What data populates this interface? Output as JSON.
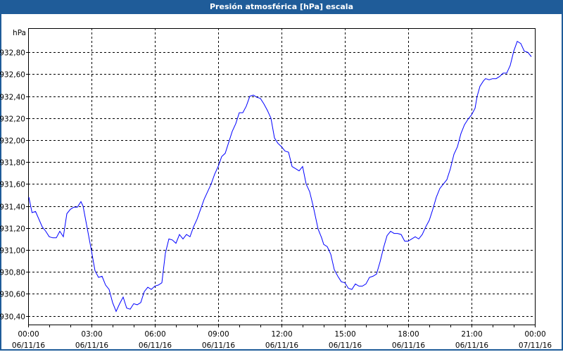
{
  "window": {
    "title": "Presión atmosférica [hPa] escala"
  },
  "chart_data": {
    "type": "line",
    "title": "Presión atmosférica [hPa] escala",
    "ylabel": "hPa",
    "xlabel": "",
    "x_unit": "minutes since 06/11/16 00:00",
    "xlim": [
      0,
      1440
    ],
    "ylim": [
      930.32,
      933.02
    ],
    "grid": true,
    "line_color": "#0000ff",
    "yticks": [
      {
        "value": 930.4,
        "label": "930,40"
      },
      {
        "value": 930.6,
        "label": "930,60"
      },
      {
        "value": 930.8,
        "label": "930,80"
      },
      {
        "value": 931.0,
        "label": "931,00"
      },
      {
        "value": 931.2,
        "label": "931,20"
      },
      {
        "value": 931.4,
        "label": "931,40"
      },
      {
        "value": 931.6,
        "label": "931,60"
      },
      {
        "value": 931.8,
        "label": "931,80"
      },
      {
        "value": 932.0,
        "label": "932,00"
      },
      {
        "value": 932.2,
        "label": "932,20"
      },
      {
        "value": 932.4,
        "label": "932,40"
      },
      {
        "value": 932.6,
        "label": "932,60"
      },
      {
        "value": 932.8,
        "label": "932,80"
      }
    ],
    "xticks": [
      {
        "value": 0,
        "time": "00:00",
        "date": "06/11/16"
      },
      {
        "value": 180,
        "time": "03:00",
        "date": "06/11/16"
      },
      {
        "value": 360,
        "time": "06:00",
        "date": "06/11/16"
      },
      {
        "value": 540,
        "time": "09:00",
        "date": "06/11/16"
      },
      {
        "value": 720,
        "time": "12:00",
        "date": "06/11/16"
      },
      {
        "value": 900,
        "time": "15:00",
        "date": "06/11/16"
      },
      {
        "value": 1080,
        "time": "18:00",
        "date": "06/11/16"
      },
      {
        "value": 1260,
        "time": "21:00",
        "date": "06/11/16"
      },
      {
        "value": 1440,
        "time": "00:00",
        "date": "07/11/16"
      }
    ],
    "series": [
      {
        "name": "Presión atmosférica",
        "x": [
          2,
          11,
          21,
          40,
          50,
          60,
          70,
          80,
          90,
          100,
          110,
          120,
          130,
          140,
          150,
          156,
          166,
          180,
          190,
          200,
          210,
          220,
          230,
          240,
          250,
          260,
          270,
          280,
          290,
          300,
          310,
          320,
          330,
          340,
          350,
          360,
          370,
          380,
          390,
          400,
          410,
          420,
          430,
          440,
          450,
          460,
          470,
          480,
          490,
          500,
          510,
          520,
          530,
          540,
          550,
          560,
          570,
          580,
          590,
          600,
          610,
          620,
          630,
          640,
          650,
          660,
          670,
          680,
          690,
          700,
          710,
          720,
          730,
          740,
          750,
          760,
          770,
          780,
          790,
          800,
          810,
          824,
          834,
          840,
          850,
          860,
          870,
          880,
          890,
          900,
          910,
          920,
          930,
          940,
          950,
          960,
          970,
          980,
          990,
          1000,
          1010,
          1020,
          1030,
          1040,
          1050,
          1060,
          1070,
          1080,
          1090,
          1100,
          1110,
          1120,
          1130,
          1140,
          1150,
          1160,
          1170,
          1180,
          1190,
          1200,
          1210,
          1220,
          1230,
          1240,
          1250,
          1260,
          1270,
          1276,
          1284,
          1294,
          1300,
          1310,
          1320,
          1330,
          1340,
          1350,
          1360,
          1370,
          1380,
          1390,
          1400,
          1410,
          1420,
          1430
        ],
        "values": [
          931.48,
          931.34,
          931.35,
          931.21,
          931.17,
          931.12,
          931.11,
          931.11,
          931.17,
          931.12,
          931.33,
          931.37,
          931.39,
          931.39,
          931.44,
          931.4,
          931.23,
          930.99,
          930.81,
          930.75,
          930.76,
          930.68,
          930.64,
          930.52,
          930.44,
          930.51,
          930.57,
          930.47,
          930.46,
          930.51,
          930.5,
          930.52,
          930.62,
          930.66,
          930.64,
          930.67,
          930.68,
          930.7,
          930.97,
          931.1,
          931.09,
          931.06,
          931.14,
          931.1,
          931.14,
          931.12,
          931.21,
          931.28,
          931.37,
          931.46,
          931.53,
          931.6,
          931.69,
          931.76,
          931.85,
          931.88,
          931.98,
          932.08,
          932.15,
          932.25,
          932.25,
          932.31,
          932.4,
          932.41,
          932.39,
          932.38,
          932.33,
          932.27,
          932.2,
          932.02,
          931.97,
          931.94,
          931.9,
          931.89,
          931.76,
          931.74,
          931.72,
          931.76,
          931.6,
          931.53,
          931.4,
          931.19,
          931.11,
          931.05,
          931.03,
          930.96,
          930.82,
          930.76,
          930.71,
          930.7,
          930.65,
          930.64,
          930.69,
          930.67,
          930.67,
          930.69,
          930.75,
          930.76,
          930.78,
          930.89,
          931.02,
          931.13,
          931.17,
          931.15,
          931.15,
          931.14,
          931.08,
          931.08,
          931.1,
          931.12,
          931.1,
          931.14,
          931.21,
          931.27,
          931.37,
          931.48,
          931.56,
          931.6,
          931.64,
          931.74,
          931.87,
          931.94,
          932.06,
          932.14,
          932.19,
          932.23,
          932.29,
          932.4,
          932.49,
          932.54,
          932.56,
          932.55,
          932.56,
          932.56,
          932.58,
          932.61,
          932.61,
          932.68,
          932.81,
          932.9,
          932.88,
          932.81,
          932.8,
          932.76
        ]
      }
    ]
  }
}
